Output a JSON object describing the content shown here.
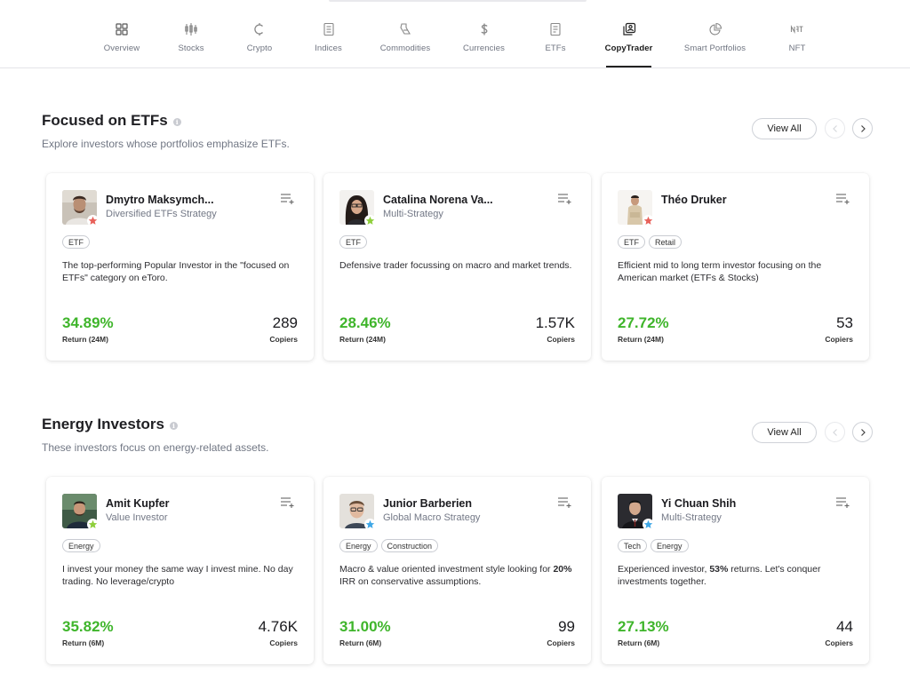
{
  "nav": {
    "items": [
      {
        "label": "Overview",
        "icon": "grid-icon",
        "active": false
      },
      {
        "label": "Stocks",
        "icon": "candlestick-icon",
        "active": false
      },
      {
        "label": "Crypto",
        "icon": "crypto-coin-icon",
        "active": false
      },
      {
        "label": "Indices",
        "icon": "indices-icon",
        "active": false
      },
      {
        "label": "Commodities",
        "icon": "commodities-icon",
        "active": false
      },
      {
        "label": "Currencies",
        "icon": "dollar-icon",
        "active": false
      },
      {
        "label": "ETFs",
        "icon": "etf-icon",
        "active": false
      },
      {
        "label": "CopyTrader",
        "icon": "copytrader-icon",
        "active": true
      },
      {
        "label": "Smart Portfolios",
        "icon": "pie-chart-icon",
        "active": false
      },
      {
        "label": "NFT",
        "icon": "nft-icon",
        "active": false
      }
    ]
  },
  "sections": [
    {
      "title": "Focused on ETFs",
      "subtitle": "Explore investors whose portfolios emphasize ETFs.",
      "view_all": "View All",
      "cards": [
        {
          "name": "Dmytro Maksymch...",
          "strategy": "Diversified ETFs Strategy",
          "tags": [
            "ETF"
          ],
          "description": "The top-performing Popular Investor in the \"focused on ETFs\" category on eToro.",
          "return": "34.89%",
          "return_label": "Return (24M)",
          "copiers": "289",
          "copiers_label": "Copiers",
          "badge_color": "#e8615a"
        },
        {
          "name": "Catalina Norena Va...",
          "strategy": "Multi-Strategy",
          "tags": [
            "ETF"
          ],
          "description": "Defensive trader focussing on macro and market trends.",
          "return": "28.46%",
          "return_label": "Return (24M)",
          "copiers": "1.57K",
          "copiers_label": "Copiers",
          "badge_color": "#8fcf3c"
        },
        {
          "name": "Théo Druker",
          "strategy": "",
          "tags": [
            "ETF",
            "Retail"
          ],
          "description": "Efficient mid to long term investor focusing on the American market (ETFs & Stocks)",
          "return": "27.72%",
          "return_label": "Return (24M)",
          "copiers": "53",
          "copiers_label": "Copiers",
          "badge_color": "#e8615a"
        }
      ]
    },
    {
      "title": "Energy Investors",
      "subtitle": "These investors focus on energy-related assets.",
      "view_all": "View All",
      "cards": [
        {
          "name": "Amit Kupfer",
          "strategy": "Value Investor",
          "tags": [
            "Energy"
          ],
          "description": "I invest your money the same way I invest mine. No day trading. No leverage/crypto",
          "return": "35.82%",
          "return_label": "Return (6M)",
          "copiers": "4.76K",
          "copiers_label": "Copiers",
          "badge_color": "#8fcf3c"
        },
        {
          "name": "Junior Barberien",
          "strategy": "Global Macro Strategy",
          "tags": [
            "Energy",
            "Construction"
          ],
          "description_pre": "Macro & value oriented investment style looking for ",
          "description_bold": "20%",
          "description_post": " IRR on conservative assumptions.",
          "return": "31.00%",
          "return_label": "Return (6M)",
          "copiers": "99",
          "copiers_label": "Copiers",
          "badge_color": "#3fa7e6"
        },
        {
          "name": "Yi Chuan Shih",
          "strategy": "Multi-Strategy",
          "tags": [
            "Tech",
            "Energy"
          ],
          "description_pre": "Experienced investor, ",
          "description_bold": "53%",
          "description_post": " returns. Let's conquer investments together.",
          "return": "27.13%",
          "return_label": "Return (6M)",
          "copiers": "44",
          "copiers_label": "Copiers",
          "badge_color": "#3fa7e6"
        }
      ]
    }
  ],
  "colors": {
    "return_green": "#3fb52b",
    "active_tab": "#222222"
  }
}
